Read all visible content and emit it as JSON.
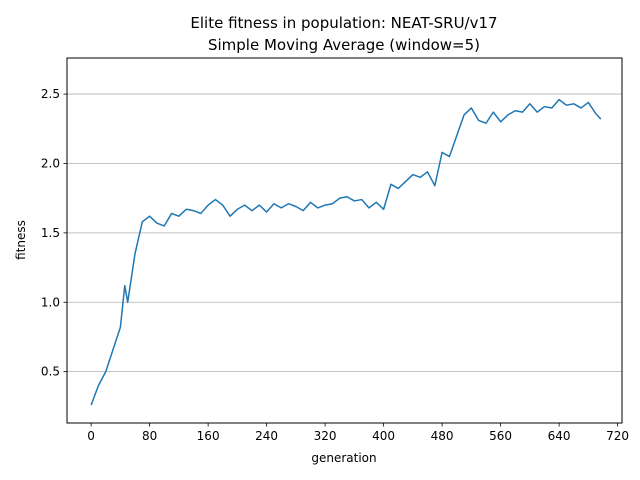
{
  "chart_data": {
    "type": "line",
    "title": "Elite fitness in population: NEAT-SRU/v17",
    "subtitle": "Simple Moving Average (window=5)",
    "xlabel": "generation",
    "ylabel": "fitness",
    "xlim": [
      -33,
      726
    ],
    "ylim": [
      0.13,
      2.76
    ],
    "xticks": [
      0,
      80,
      160,
      240,
      320,
      400,
      480,
      560,
      640,
      720
    ],
    "yticks": [
      0.5,
      1.0,
      1.5,
      2.0,
      2.5
    ],
    "ytick_labels": [
      "0.5",
      "1.0",
      "1.5",
      "2.0",
      "2.5"
    ],
    "grid": "y-major",
    "line_color": "#1f77b4",
    "series": [
      {
        "x": [
          0,
          10,
          20,
          30,
          40,
          46,
          50,
          60,
          70,
          80,
          90,
          100,
          110,
          120,
          130,
          140,
          150,
          160,
          170,
          180,
          190,
          200,
          210,
          220,
          230,
          240,
          250,
          260,
          270,
          280,
          290,
          300,
          310,
          320,
          330,
          340,
          350,
          360,
          370,
          380,
          390,
          400,
          410,
          420,
          430,
          440,
          450,
          460,
          470,
          480,
          490,
          500,
          510,
          520,
          530,
          540,
          550,
          560,
          570,
          580,
          590,
          600,
          610,
          620,
          630,
          640,
          650,
          660,
          670,
          680,
          690,
          697
        ],
        "y": [
          0.26,
          0.4,
          0.5,
          0.66,
          0.82,
          1.12,
          1.0,
          1.35,
          1.58,
          1.62,
          1.57,
          1.55,
          1.64,
          1.62,
          1.67,
          1.66,
          1.64,
          1.7,
          1.74,
          1.7,
          1.62,
          1.67,
          1.7,
          1.66,
          1.7,
          1.65,
          1.71,
          1.68,
          1.71,
          1.69,
          1.66,
          1.72,
          1.68,
          1.7,
          1.71,
          1.75,
          1.76,
          1.73,
          1.74,
          1.68,
          1.72,
          1.67,
          1.85,
          1.82,
          1.87,
          1.92,
          1.9,
          1.94,
          1.84,
          2.08,
          2.05,
          2.2,
          2.35,
          2.4,
          2.31,
          2.29,
          2.37,
          2.3,
          2.35,
          2.38,
          2.37,
          2.43,
          2.37,
          2.41,
          2.4,
          2.46,
          2.42,
          2.43,
          2.4,
          2.44,
          2.36,
          2.32
        ]
      }
    ]
  }
}
